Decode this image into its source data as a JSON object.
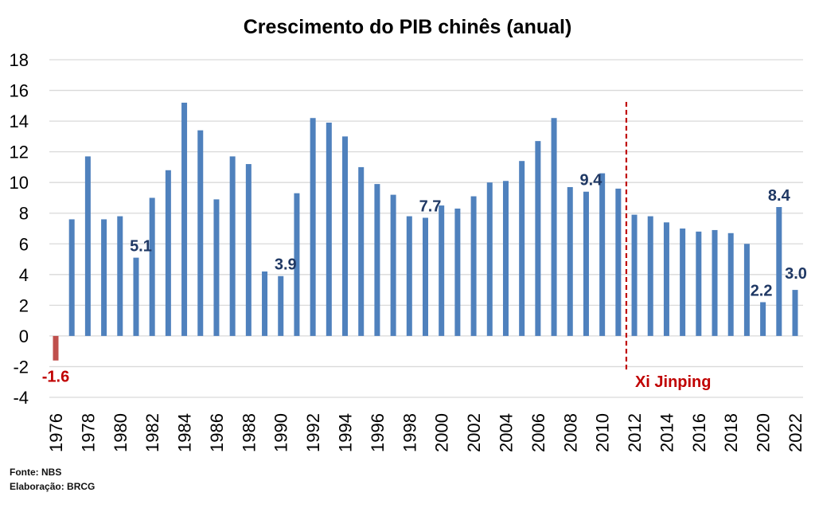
{
  "chart_data": {
    "type": "bar",
    "title": "Crescimento do PIB chinês (anual)",
    "xlabel": "",
    "ylabel": "",
    "ylim": [
      -4,
      18
    ],
    "yticks": [
      -4,
      -2,
      0,
      2,
      4,
      6,
      8,
      10,
      12,
      14,
      16,
      18
    ],
    "grid": true,
    "categories": [
      "1976",
      "1977",
      "1978",
      "1979",
      "1980",
      "1981",
      "1982",
      "1983",
      "1984",
      "1985",
      "1986",
      "1987",
      "1988",
      "1989",
      "1990",
      "1991",
      "1992",
      "1993",
      "1994",
      "1995",
      "1996",
      "1997",
      "1998",
      "1999",
      "2000",
      "2001",
      "2002",
      "2003",
      "2004",
      "2005",
      "2006",
      "2007",
      "2008",
      "2009",
      "2010",
      "2011",
      "2012",
      "2013",
      "2014",
      "2015",
      "2016",
      "2017",
      "2018",
      "2019",
      "2020",
      "2021",
      "2022"
    ],
    "xtick_labels": [
      "1976",
      "1978",
      "1980",
      "1982",
      "1984",
      "1986",
      "1988",
      "1990",
      "1992",
      "1994",
      "1996",
      "1998",
      "2000",
      "2002",
      "2004",
      "2006",
      "2008",
      "2010",
      "2012",
      "2014",
      "2016",
      "2018",
      "2020",
      "2022"
    ],
    "values": [
      -1.6,
      7.6,
      11.7,
      7.6,
      7.8,
      5.1,
      9.0,
      10.8,
      15.2,
      13.4,
      8.9,
      11.7,
      11.2,
      4.2,
      3.9,
      9.3,
      14.2,
      13.9,
      13.0,
      11.0,
      9.9,
      9.2,
      7.8,
      7.7,
      8.5,
      8.3,
      9.1,
      10.0,
      10.1,
      11.4,
      12.7,
      14.2,
      9.7,
      9.4,
      10.6,
      9.6,
      7.9,
      7.8,
      7.4,
      7.0,
      6.8,
      6.9,
      6.7,
      6.0,
      2.2,
      8.4,
      3.0
    ],
    "data_labels": [
      {
        "category": "1976",
        "text": "-1.6",
        "color": "#c00000"
      },
      {
        "category": "1981",
        "text": "5.1",
        "color": "#1f3864"
      },
      {
        "category": "1990",
        "text": "3.9",
        "color": "#1f3864"
      },
      {
        "category": "1999",
        "text": "7.7",
        "color": "#1f3864"
      },
      {
        "category": "2009",
        "text": "9.4",
        "color": "#1f3864"
      },
      {
        "category": "2020",
        "text": "2.2",
        "color": "#1f3864"
      },
      {
        "category": "2021",
        "text": "8.4",
        "color": "#1f3864"
      },
      {
        "category": "2022",
        "text": "3.0",
        "color": "#1f3864"
      }
    ],
    "annotation": {
      "text": "Xi Jinping",
      "after_category": "2011",
      "color": "#c00000",
      "line_style": "dashed"
    },
    "colors": {
      "positive": "#4f81bd",
      "negative": "#c0504d",
      "grid": "#d9d9d9"
    }
  },
  "footer": {
    "source": "Fonte: NBS",
    "author": "Elaboração: BRCG"
  }
}
